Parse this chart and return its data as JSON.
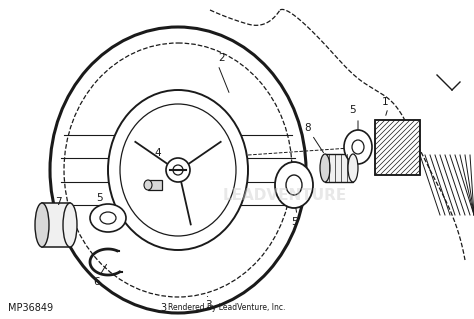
{
  "bg_color": "#ffffff",
  "fig_width": 4.74,
  "fig_height": 3.19,
  "dpi": 100,
  "bottom_left_text": "MP36849",
  "bottom_center_label": "3",
  "bottom_center_subtext": "Rendered by LeadVenture, Inc.",
  "watermark_text": "LEADVENTURE",
  "line_color": "#1a1a1a",
  "gray_fill": "#d8d8d8",
  "light_fill": "#f0f0f0"
}
